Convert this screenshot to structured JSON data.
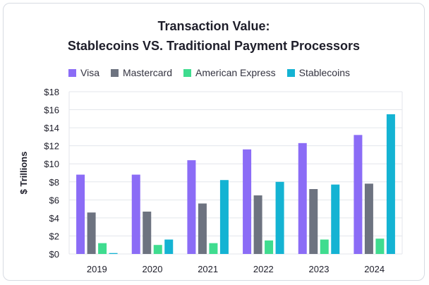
{
  "chart_data": {
    "type": "bar",
    "title": "Transaction Value:",
    "subtitle": "Stablecoins VS. Traditional Payment Processors",
    "ylabel": "$ Trillions",
    "xlabel": "",
    "categories": [
      "2019",
      "2020",
      "2021",
      "2022",
      "2023",
      "2024"
    ],
    "ylim": [
      0,
      18
    ],
    "yticks": [
      0,
      2,
      4,
      6,
      8,
      10,
      12,
      14,
      16,
      18
    ],
    "ytick_labels": [
      "$0",
      "$2",
      "$4",
      "$6",
      "$8",
      "$10",
      "$12",
      "$14",
      "$16",
      "$18"
    ],
    "grid": true,
    "legend": "top",
    "series": [
      {
        "name": "Visa",
        "color": "#8b6cf6",
        "values": [
          8.8,
          8.8,
          10.4,
          11.6,
          12.3,
          13.2
        ]
      },
      {
        "name": "Mastercard",
        "color": "#6d7380",
        "values": [
          4.6,
          4.7,
          5.6,
          6.5,
          7.2,
          7.8
        ]
      },
      {
        "name": "American Express",
        "color": "#3fdc8f",
        "values": [
          1.2,
          1.0,
          1.2,
          1.5,
          1.6,
          1.7
        ]
      },
      {
        "name": "Stablecoins",
        "color": "#14b3d3",
        "values": [
          0.1,
          1.6,
          8.2,
          8.0,
          7.7,
          15.5
        ]
      }
    ]
  }
}
